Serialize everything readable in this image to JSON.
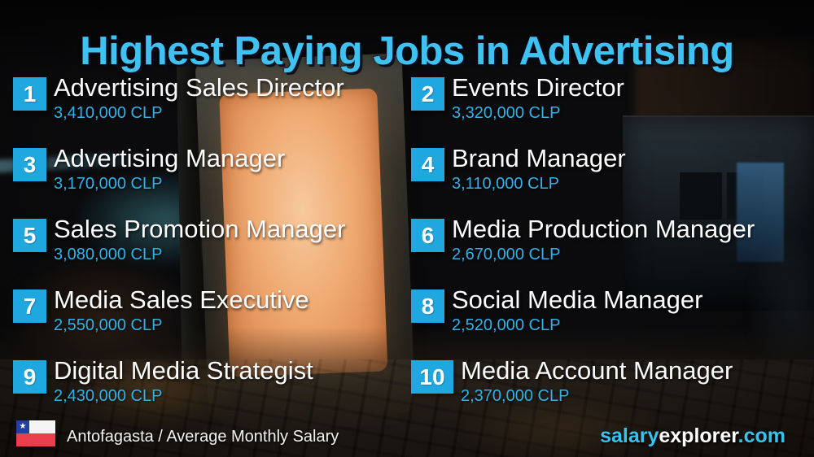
{
  "title": "Highest Paying Jobs in Advertising",
  "jobs": [
    {
      "rank": "1",
      "title": "Advertising Sales Director",
      "salary": "3,410,000 CLP"
    },
    {
      "rank": "2",
      "title": "Events Director",
      "salary": "3,320,000 CLP"
    },
    {
      "rank": "3",
      "title": "Advertising Manager",
      "salary": "3,170,000 CLP"
    },
    {
      "rank": "4",
      "title": "Brand Manager",
      "salary": "3,110,000 CLP"
    },
    {
      "rank": "5",
      "title": "Sales Promotion Manager",
      "salary": "3,080,000 CLP"
    },
    {
      "rank": "6",
      "title": "Media Production Manager",
      "salary": "2,670,000 CLP"
    },
    {
      "rank": "7",
      "title": "Media Sales Executive",
      "salary": "2,550,000 CLP"
    },
    {
      "rank": "8",
      "title": "Social Media Manager",
      "salary": "2,520,000 CLP"
    },
    {
      "rank": "9",
      "title": "Digital Media Strategist",
      "salary": "2,430,000 CLP"
    },
    {
      "rank": "10",
      "title": "Media Account Manager",
      "salary": "2,370,000 CLP"
    }
  ],
  "footer": {
    "location_label": "Antofagasta / Average Monthly Salary",
    "flag_icon": "chile-flag",
    "flag_star_glyph": "★",
    "brand": {
      "salary": "salary",
      "explorer": "explorer",
      "domain": ".com"
    }
  },
  "colors": {
    "title_cyan": "#3fc2f2",
    "rank_box_cyan": "#1fa8e0",
    "salary_cyan": "#2fb3e8",
    "brand_cyan": "#35c3f0",
    "text_white": "#fdfdfd"
  },
  "chart_data": {
    "type": "table",
    "title": "Highest Paying Jobs in Advertising",
    "subtitle": "Antofagasta / Average Monthly Salary",
    "currency": "CLP",
    "categories": [
      "Advertising Sales Director",
      "Events Director",
      "Advertising Manager",
      "Brand Manager",
      "Sales Promotion Manager",
      "Media Production Manager",
      "Media Sales Executive",
      "Social Media Manager",
      "Digital Media Strategist",
      "Media Account Manager"
    ],
    "values": [
      3410000,
      3320000,
      3170000,
      3110000,
      3080000,
      2670000,
      2550000,
      2520000,
      2430000,
      2370000
    ],
    "ranks": [
      1,
      2,
      3,
      4,
      5,
      6,
      7,
      8,
      9,
      10
    ],
    "source": "salaryexplorer.com"
  }
}
